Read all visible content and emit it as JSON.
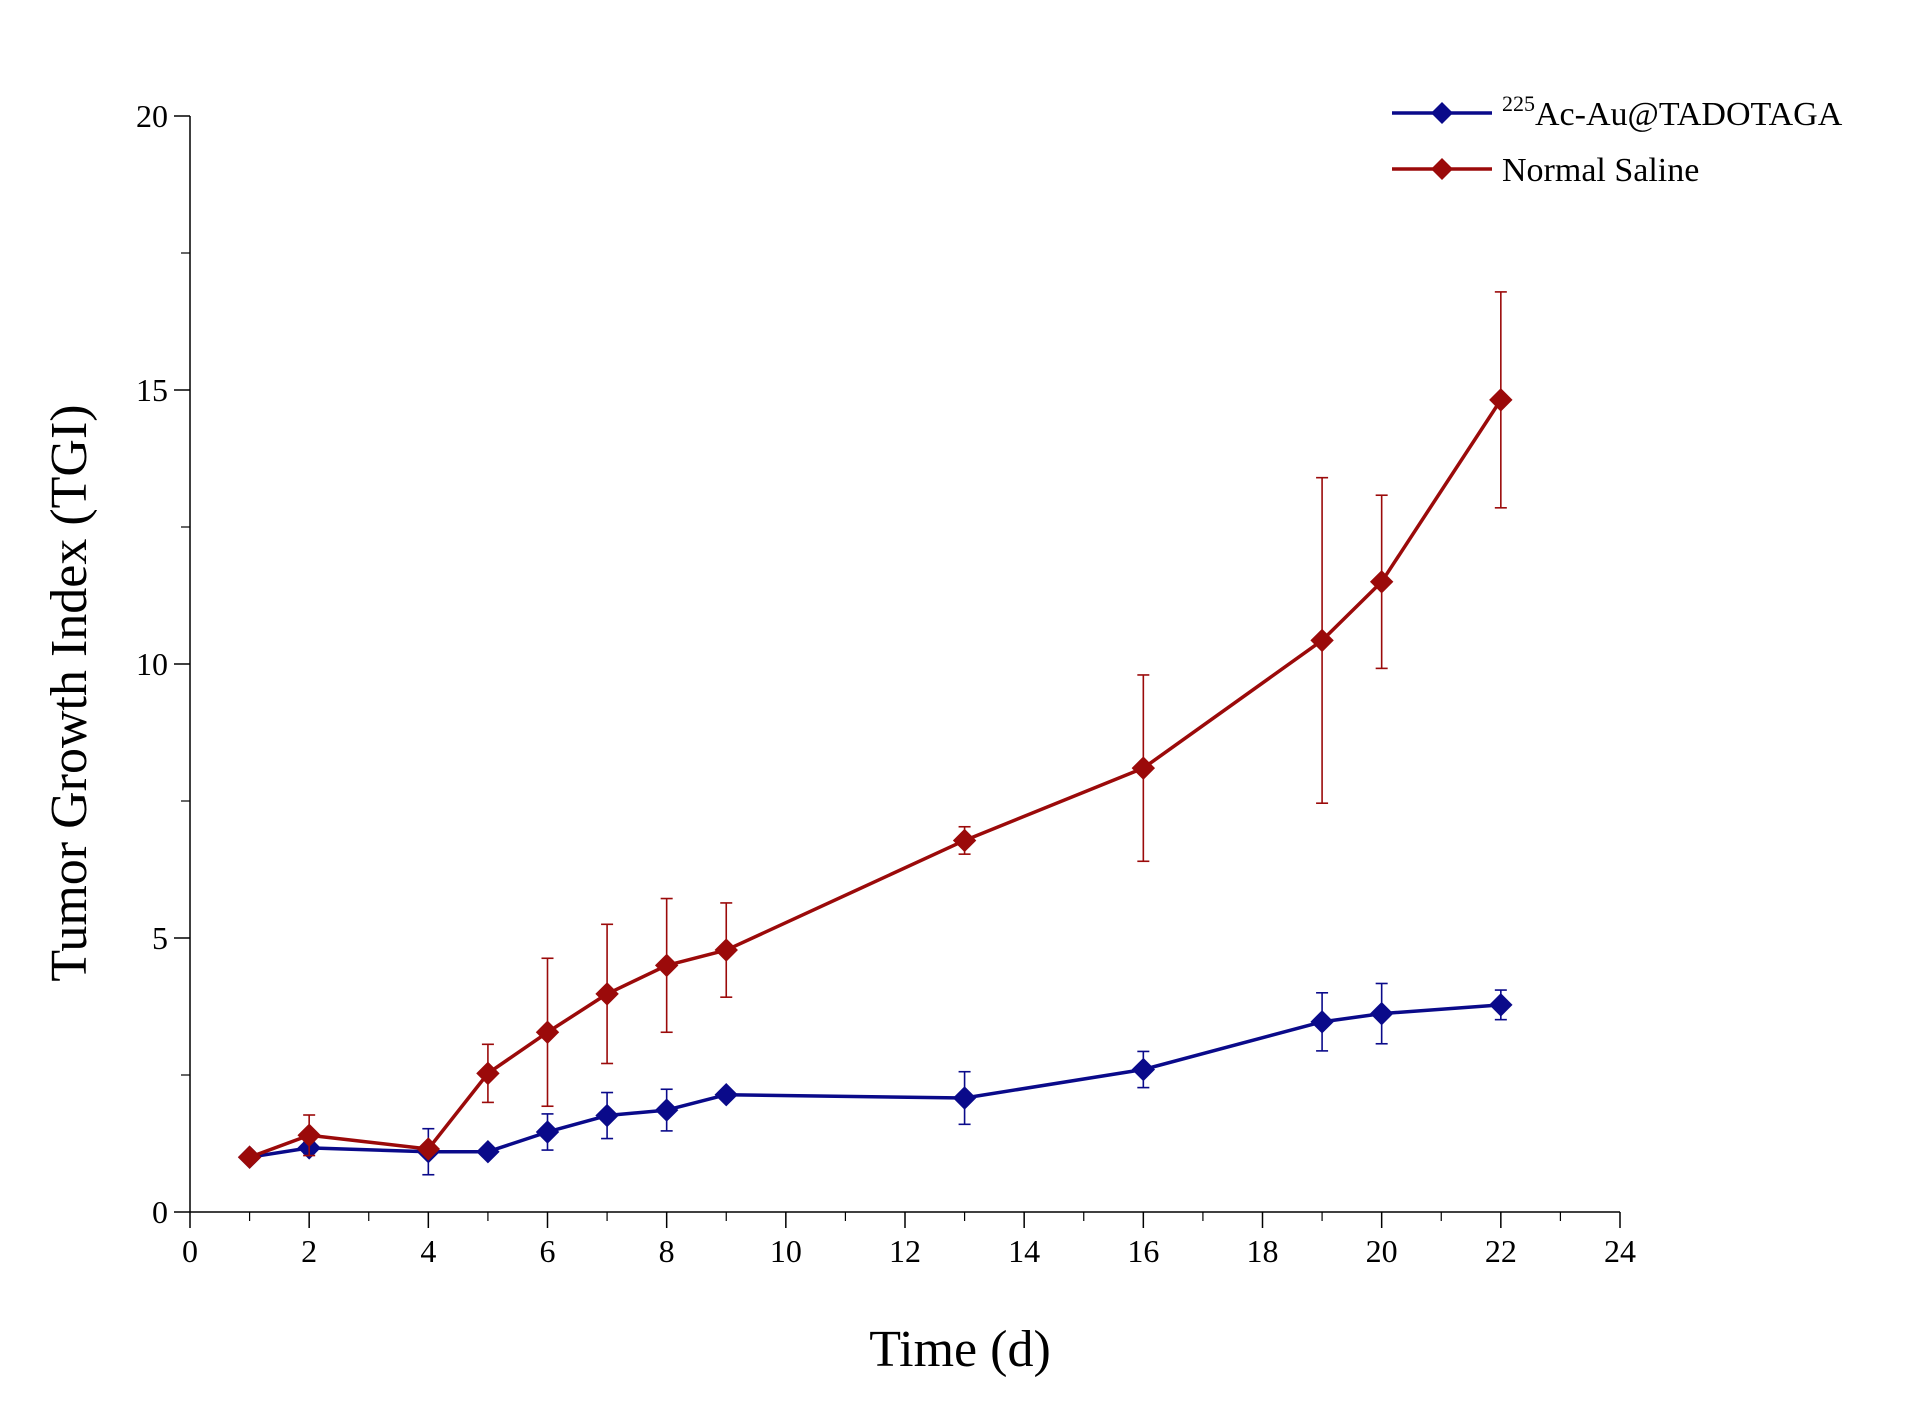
{
  "chart_data": {
    "type": "line",
    "title": "",
    "xlabel": "Time (d)",
    "ylabel": "Tumor Growth Index (TGI)",
    "xlim": [
      0,
      24
    ],
    "ylim": [
      0,
      20
    ],
    "x_ticks": [
      0,
      2,
      4,
      6,
      8,
      10,
      12,
      14,
      16,
      18,
      20,
      22,
      24
    ],
    "y_ticks": [
      0,
      5,
      10,
      15,
      20
    ],
    "x_minor_step": 1,
    "y_minor_step": 2.5,
    "grid": false,
    "legend_position": "top-right",
    "x": [
      1,
      2,
      4,
      5,
      6,
      7,
      8,
      9,
      13,
      16,
      19,
      20,
      22
    ],
    "series": [
      {
        "name": "Ac-Au@TADOTAGA",
        "name_superscript": "225",
        "color": "#0a0a8a",
        "marker": "diamond",
        "values": [
          1.0,
          1.17,
          1.1,
          1.1,
          1.46,
          1.76,
          1.86,
          2.14,
          2.08,
          2.6,
          3.47,
          3.62,
          3.78
        ],
        "errors": [
          0.0,
          0.1,
          0.42,
          0.0,
          0.33,
          0.42,
          0.38,
          0.0,
          0.48,
          0.33,
          0.53,
          0.55,
          0.27
        ]
      },
      {
        "name": "Normal Saline",
        "name_superscript": "",
        "color": "#9b0a0a",
        "marker": "diamond",
        "values": [
          1.0,
          1.4,
          1.15,
          2.53,
          3.28,
          3.98,
          4.5,
          4.78,
          6.78,
          8.1,
          10.43,
          11.5,
          14.82
        ],
        "errors": [
          0.0,
          0.37,
          0.0,
          0.53,
          1.35,
          1.27,
          1.22,
          0.86,
          0.25,
          1.7,
          2.97,
          1.58,
          1.97
        ]
      }
    ]
  }
}
